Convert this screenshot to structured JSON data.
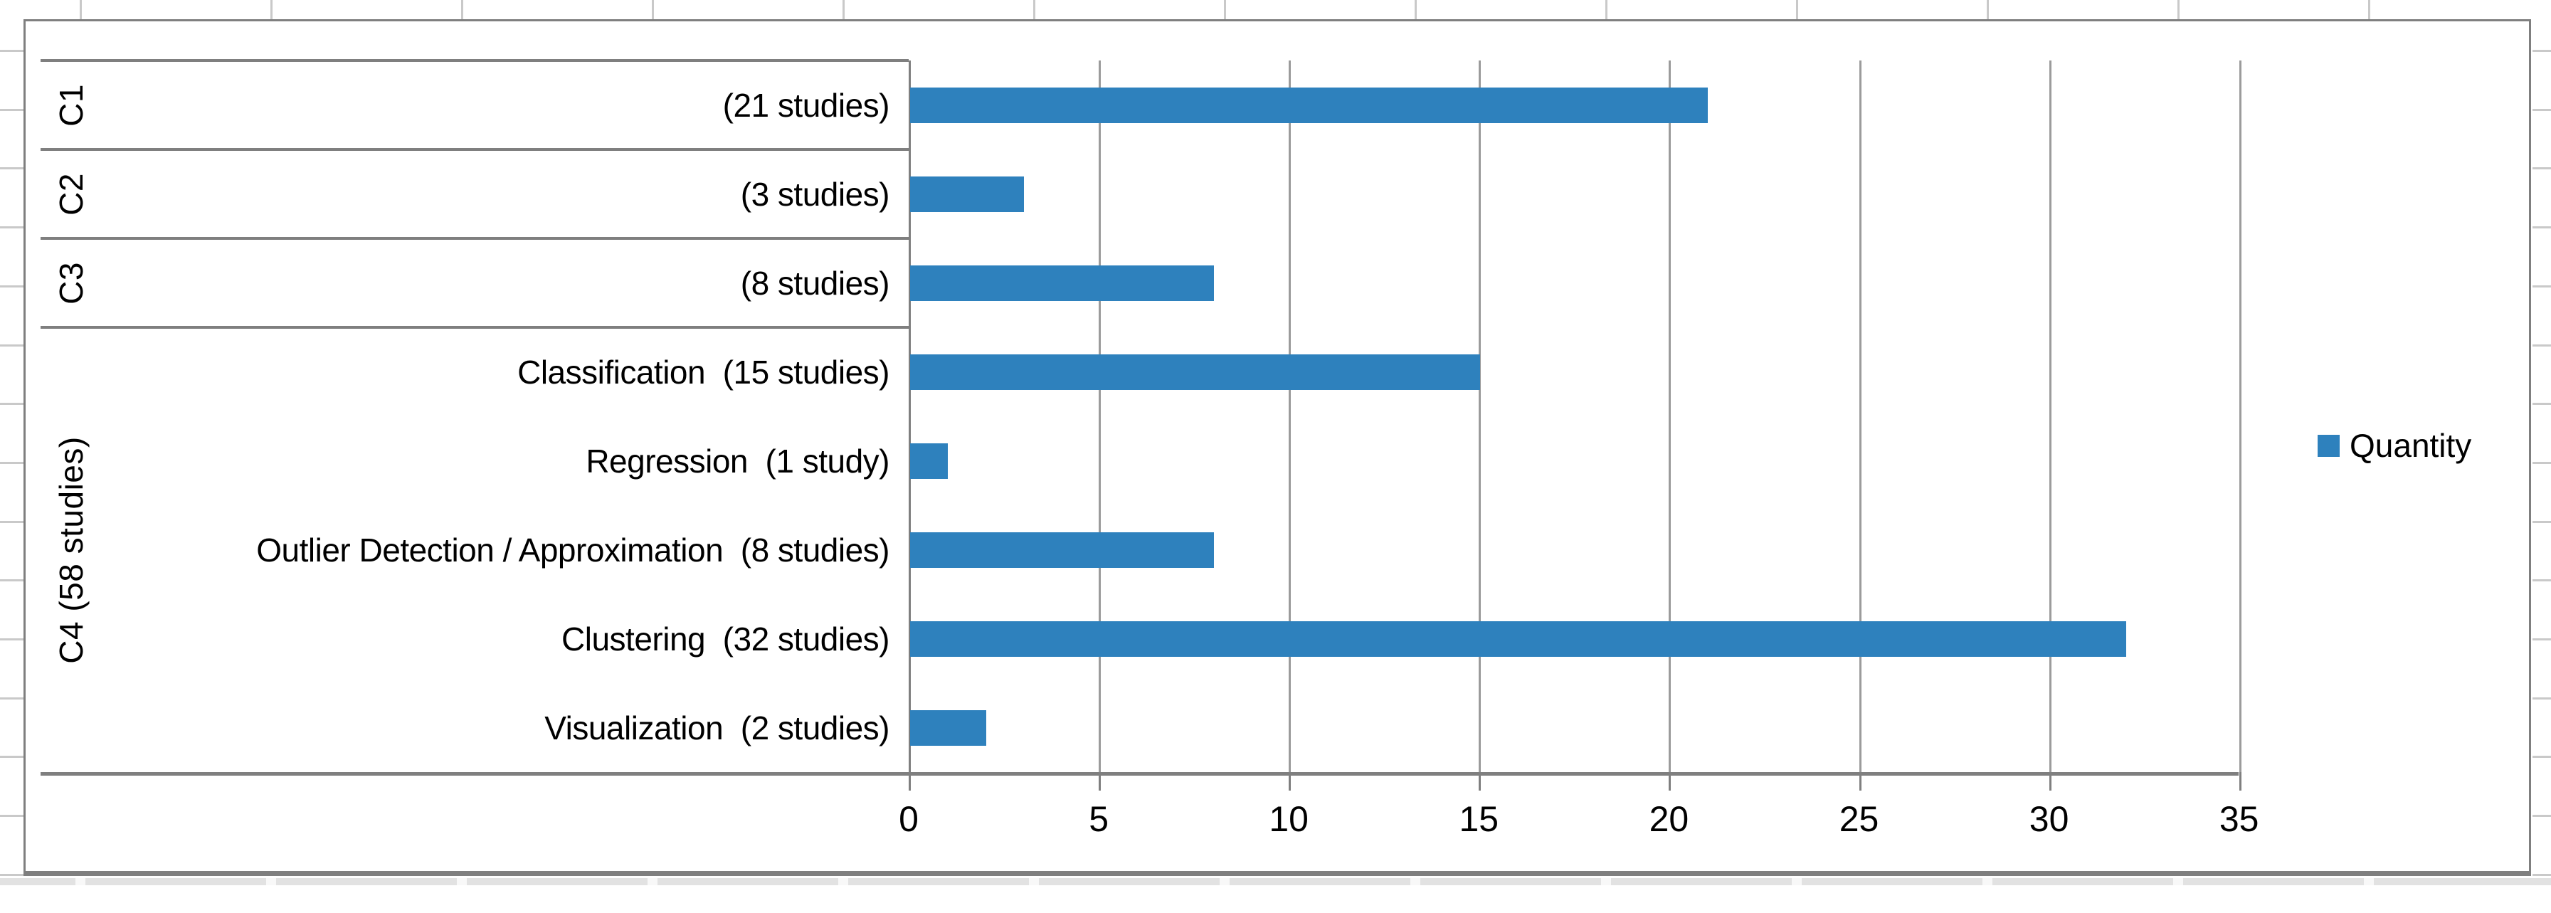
{
  "chart_data": {
    "type": "bar",
    "orientation": "horizontal",
    "title": "",
    "legend": {
      "label": "Quantity",
      "position": "right"
    },
    "series_color": "#2e81bd",
    "x_axis": {
      "min": 0,
      "max": 35,
      "tick_interval": 5,
      "ticks": [
        "0",
        "5",
        "10",
        "15",
        "20",
        "25",
        "30",
        "35"
      ],
      "gridlines": "on"
    },
    "groups": [
      {
        "outer_label": "C1",
        "rows": [
          {
            "label": "(21 studies)",
            "value": 21
          }
        ]
      },
      {
        "outer_label": "C2",
        "rows": [
          {
            "label": "(3 studies)",
            "value": 3
          }
        ]
      },
      {
        "outer_label": "C3",
        "rows": [
          {
            "label": "(8 studies)",
            "value": 8
          }
        ]
      },
      {
        "outer_label": "C4 (58 studies)",
        "rows": [
          {
            "label": "Classification  (15 studies)",
            "value": 15
          },
          {
            "label": "Regression  (1 study)",
            "value": 1
          },
          {
            "label": "Outlier Detection / Approximation  (8 studies)",
            "value": 8
          },
          {
            "label": "Clustering  (32 studies)",
            "value": 32
          },
          {
            "label": "Visualization  (2 studies)",
            "value": 2
          }
        ]
      }
    ]
  }
}
